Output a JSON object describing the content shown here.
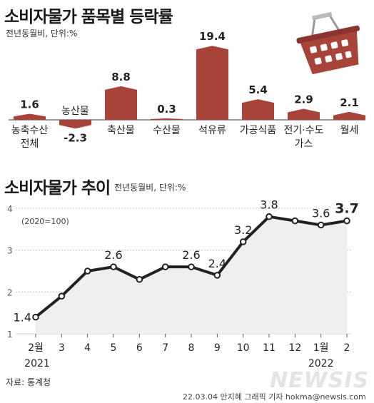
{
  "chart_data": [
    {
      "type": "bar",
      "title": "소비자물가 품목별 등락률",
      "subtitle": "전년동월비, 단위:%",
      "categories": [
        "농축수산 전체",
        "농산물",
        "축산물",
        "수산물",
        "석유류",
        "가공식품",
        "전기·수도 가스",
        "월세"
      ],
      "category_lines": [
        [
          "농축수산",
          "전체"
        ],
        [
          "농산물"
        ],
        [
          "축산물"
        ],
        [
          "수산물"
        ],
        [
          "석유류"
        ],
        [
          "가공식품"
        ],
        [
          "전기·수도",
          "가스"
        ],
        [
          "월세"
        ]
      ],
      "values": [
        1.6,
        -2.3,
        8.8,
        0.3,
        19.4,
        5.4,
        2.9,
        2.1
      ],
      "value_labels": [
        "1.6",
        "-2.3",
        "8.8",
        "0.3",
        "19.4",
        "5.4",
        "2.9",
        "2.1"
      ],
      "colors": {
        "bar": "#a8433a",
        "baseline": "#333333"
      }
    },
    {
      "type": "area",
      "title": "소비자물가 추이",
      "subtitle": "전년동월비, 단위:%",
      "note": "(2020=100)",
      "x": [
        "2월",
        "3",
        "4",
        "5",
        "6",
        "7",
        "8",
        "9",
        "10",
        "11",
        "12",
        "1월",
        "2"
      ],
      "year_labels": [
        {
          "text": "2021",
          "at": "2월"
        },
        {
          "text": "2022",
          "at": "1월"
        }
      ],
      "y": [
        1.4,
        1.9,
        2.5,
        2.6,
        2.3,
        2.6,
        2.6,
        2.4,
        3.2,
        3.8,
        3.7,
        3.6,
        3.7
      ],
      "labels": [
        {
          "index": 0,
          "text": "1.4"
        },
        {
          "index": 3,
          "text": "2.6"
        },
        {
          "index": 6,
          "text": "2.6"
        },
        {
          "index": 7,
          "text": "2.4"
        },
        {
          "index": 8,
          "text": "3.2"
        },
        {
          "index": 9,
          "text": "3.8"
        },
        {
          "index": 11,
          "text": "3.6"
        },
        {
          "index": 12,
          "text": "3.7"
        }
      ],
      "yticks": [
        1,
        2,
        3,
        4
      ],
      "ylim": [
        1,
        4
      ],
      "grid": true,
      "colors": {
        "line": "#222222",
        "fill": "#efefef",
        "grid": "#bbbbbb"
      }
    }
  ],
  "source": "자료: 통계청",
  "credit": "22.03.04 안지혜 그래픽 기자 hokma@newsis.com",
  "logo": "NEWSIS"
}
